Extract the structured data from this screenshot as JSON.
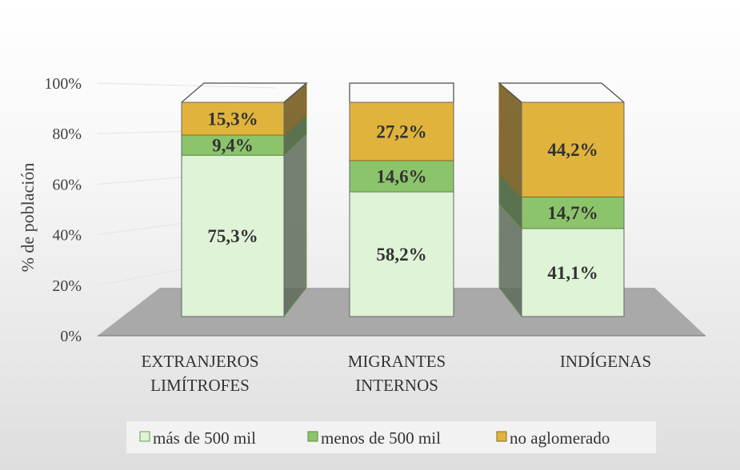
{
  "chart_data": {
    "type": "bar",
    "stacked": true,
    "three_d": true,
    "title": "",
    "xlabel": "",
    "ylabel": "% de población",
    "ylim": [
      0,
      100
    ],
    "yticks": [
      0,
      20,
      40,
      60,
      80,
      100
    ],
    "ytick_labels": [
      "0%",
      "20%",
      "40%",
      "60%",
      "80%",
      "100%"
    ],
    "categories": [
      [
        "EXTRANJEROS",
        "LIMÍTROFES"
      ],
      [
        "MIGRANTES",
        "INTERNOS"
      ],
      [
        "INDÍGENAS"
      ]
    ],
    "series": [
      {
        "name": "más de 500 mil",
        "values": [
          75.3,
          58.2,
          41.1
        ],
        "labels": [
          "75,3%",
          "58,2%",
          "41,1%"
        ],
        "color": "#dff3d6",
        "side": "#5e6b5b",
        "stroke": "#6d9a5c"
      },
      {
        "name": "menos de 500 mil",
        "values": [
          9.4,
          14.6,
          14.7
        ],
        "labels": [
          "9,4%",
          "14,6%",
          "14,7%"
        ],
        "color": "#8cc46c",
        "side": "#3e5a33",
        "stroke": "#5a8a40"
      },
      {
        "name": "no aglomerado",
        "values": [
          15.3,
          27.2,
          44.2
        ],
        "labels": [
          "15,3%",
          "27,2%",
          "44,2%"
        ],
        "color": "#e0b43c",
        "side": "#6e5214",
        "stroke": "#8a6a1c"
      }
    ],
    "legend_position": "bottom",
    "grid": true
  }
}
